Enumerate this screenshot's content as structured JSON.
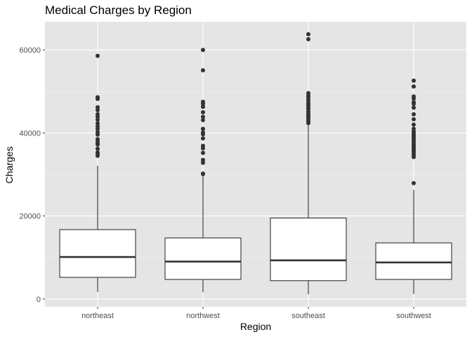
{
  "chart_data": {
    "type": "boxplot",
    "title": "Medical Charges by Region",
    "xlabel": "Region",
    "ylabel": "Charges",
    "ylim": [
      -1900,
      66800
    ],
    "yticks": [
      0,
      20000,
      40000,
      60000
    ],
    "ytick_labels": [
      "0",
      "20000",
      "40000",
      "60000"
    ],
    "grid": true,
    "categories": [
      "northeast",
      "northwest",
      "southeast",
      "southwest"
    ],
    "boxes": [
      {
        "category": "northeast",
        "whisker_low": 1700,
        "q1": 5200,
        "median": 10100,
        "q3": 16700,
        "whisker_high": 32100,
        "outliers": [
          58600,
          48600,
          48200,
          46200,
          45500,
          44500,
          43900,
          43200,
          42300,
          41600,
          41000,
          40200,
          39600,
          38500,
          38000,
          37500,
          37200,
          36200,
          35300,
          34800,
          34500
        ]
      },
      {
        "category": "northwest",
        "whisker_low": 1600,
        "q1": 4700,
        "median": 9000,
        "q3": 14700,
        "whisker_high": 29700,
        "outliers": [
          60000,
          55100,
          47500,
          47000,
          46300,
          45000,
          43900,
          43100,
          41000,
          40100,
          39700,
          38700,
          36900,
          36300,
          35200,
          33500,
          32800,
          30200,
          30100
        ]
      },
      {
        "category": "southeast",
        "whisker_low": 1100,
        "q1": 4400,
        "median": 9300,
        "q3": 19500,
        "whisker_high": 42200,
        "outliers": [
          63800,
          62600,
          49600,
          49000,
          48600,
          48000,
          47400,
          47000,
          46600,
          46100,
          45700,
          45100,
          44600,
          44200,
          44000,
          43700,
          43200,
          42800,
          42400
        ]
      },
      {
        "category": "southwest",
        "whisker_low": 1200,
        "q1": 4700,
        "median": 8800,
        "q3": 13500,
        "whisker_high": 26300,
        "outliers": [
          52600,
          51200,
          48800,
          48300,
          47400,
          47000,
          46100,
          44500,
          43300,
          42000,
          41000,
          40300,
          39800,
          39400,
          39000,
          38700,
          38200,
          37800,
          37300,
          36800,
          36400,
          36000,
          35600,
          35100,
          34700,
          34200,
          27900
        ]
      }
    ]
  }
}
